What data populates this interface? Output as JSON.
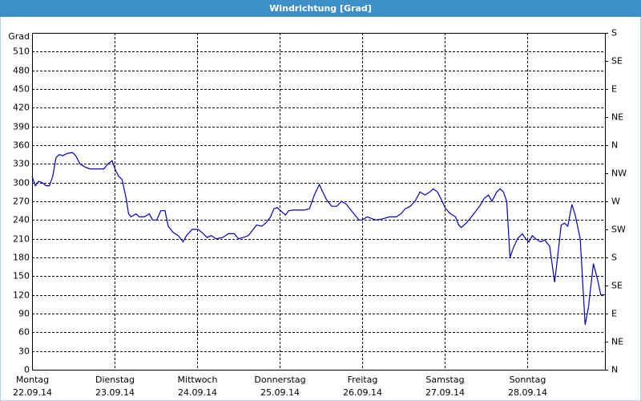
{
  "window_title": "Windrichtung [Grad]",
  "chart_data": {
    "type": "line",
    "ylabel": "Grad",
    "color": "#0000c8",
    "grid": true,
    "xlim": [
      0,
      6.94
    ],
    "xticks": [
      {
        "value": 0,
        "label": "Montag",
        "date": "22.09.14"
      },
      {
        "value": 1,
        "label": "Dienstag",
        "date": "23.09.14"
      },
      {
        "value": 2,
        "label": "Mittwoch",
        "date": "24.09.14"
      },
      {
        "value": 3,
        "label": "Donnerstag",
        "date": "25.09.14"
      },
      {
        "value": 4,
        "label": "Freitag",
        "date": "26.09.14"
      },
      {
        "value": 5,
        "label": "Samstag",
        "date": "27.09.14"
      },
      {
        "value": 6,
        "label": "Sonntag",
        "date": "28.09.14"
      }
    ],
    "ylim": [
      0,
      540
    ],
    "yticks": [
      0,
      30,
      60,
      90,
      120,
      150,
      180,
      210,
      240,
      270,
      300,
      330,
      360,
      390,
      420,
      450,
      480,
      510
    ],
    "y2lim": [
      0,
      540
    ],
    "y2ticks": [
      {
        "value": 0,
        "label": "N"
      },
      {
        "value": 45,
        "label": "NE"
      },
      {
        "value": 90,
        "label": "E"
      },
      {
        "value": 135,
        "label": "SE"
      },
      {
        "value": 180,
        "label": "S"
      },
      {
        "value": 225,
        "label": "SW"
      },
      {
        "value": 270,
        "label": "W"
      },
      {
        "value": 315,
        "label": "NW"
      },
      {
        "value": 360,
        "label": "N"
      },
      {
        "value": 405,
        "label": "NE"
      },
      {
        "value": 450,
        "label": "E"
      },
      {
        "value": 495,
        "label": "SE"
      },
      {
        "value": 540,
        "label": "S"
      }
    ],
    "x": [
      0,
      0.04,
      0.08,
      0.12,
      0.17,
      0.21,
      0.25,
      0.29,
      0.33,
      0.37,
      0.43,
      0.49,
      0.53,
      0.58,
      0.64,
      0.7,
      0.78,
      0.87,
      0.92,
      0.97,
      1.01,
      1.05,
      1.09,
      1.14,
      1.17,
      1.2,
      1.26,
      1.3,
      1.36,
      1.42,
      1.46,
      1.51,
      1.56,
      1.61,
      1.65,
      1.71,
      1.77,
      1.83,
      1.87,
      1.94,
      2.01,
      2.06,
      2.12,
      2.17,
      2.23,
      2.31,
      2.38,
      2.45,
      2.5,
      2.56,
      2.62,
      2.68,
      2.72,
      2.78,
      2.83,
      2.89,
      2.93,
      2.97,
      3.01,
      3.07,
      3.11,
      3.17,
      3.22,
      3.3,
      3.36,
      3.42,
      3.48,
      3.52,
      3.57,
      3.63,
      3.69,
      3.75,
      3.81,
      3.85,
      3.9,
      3.96,
      4.0,
      4.06,
      4.12,
      4.17,
      4.25,
      4.33,
      4.41,
      4.47,
      4.52,
      4.58,
      4.64,
      4.7,
      4.76,
      4.82,
      4.86,
      4.91,
      4.95,
      5.01,
      5.07,
      5.13,
      5.17,
      5.2,
      5.26,
      5.34,
      5.42,
      5.48,
      5.53,
      5.57,
      5.63,
      5.67,
      5.71,
      5.75,
      5.79,
      5.83,
      5.88,
      5.94,
      5.98,
      6.02,
      6.06,
      6.1,
      6.16,
      6.21,
      6.27,
      6.33,
      6.37,
      6.41,
      6.45,
      6.49,
      6.54,
      6.58,
      6.64,
      6.7,
      6.74,
      6.8,
      6.85,
      6.89,
      6.94
    ],
    "values": [
      310,
      295,
      302,
      300,
      295,
      295,
      310,
      340,
      345,
      343,
      347,
      348,
      343,
      330,
      325,
      322,
      322,
      322,
      330,
      335,
      320,
      310,
      305,
      275,
      250,
      245,
      250,
      245,
      245,
      250,
      240,
      240,
      255,
      255,
      230,
      220,
      215,
      205,
      215,
      225,
      225,
      220,
      212,
      215,
      210,
      212,
      218,
      218,
      210,
      212,
      215,
      225,
      232,
      230,
      235,
      245,
      258,
      260,
      255,
      248,
      255,
      256,
      256,
      256,
      258,
      280,
      297,
      285,
      272,
      262,
      262,
      270,
      265,
      258,
      250,
      240,
      240,
      245,
      242,
      240,
      242,
      245,
      245,
      250,
      258,
      262,
      270,
      285,
      280,
      285,
      290,
      285,
      275,
      258,
      250,
      245,
      232,
      228,
      235,
      248,
      262,
      275,
      280,
      270,
      285,
      290,
      285,
      270,
      180,
      195,
      210,
      218,
      210,
      205,
      215,
      210,
      205,
      208,
      198,
      140,
      185,
      232,
      235,
      230,
      265,
      248,
      210,
      72,
      100,
      170,
      145,
      120,
      120
    ]
  }
}
